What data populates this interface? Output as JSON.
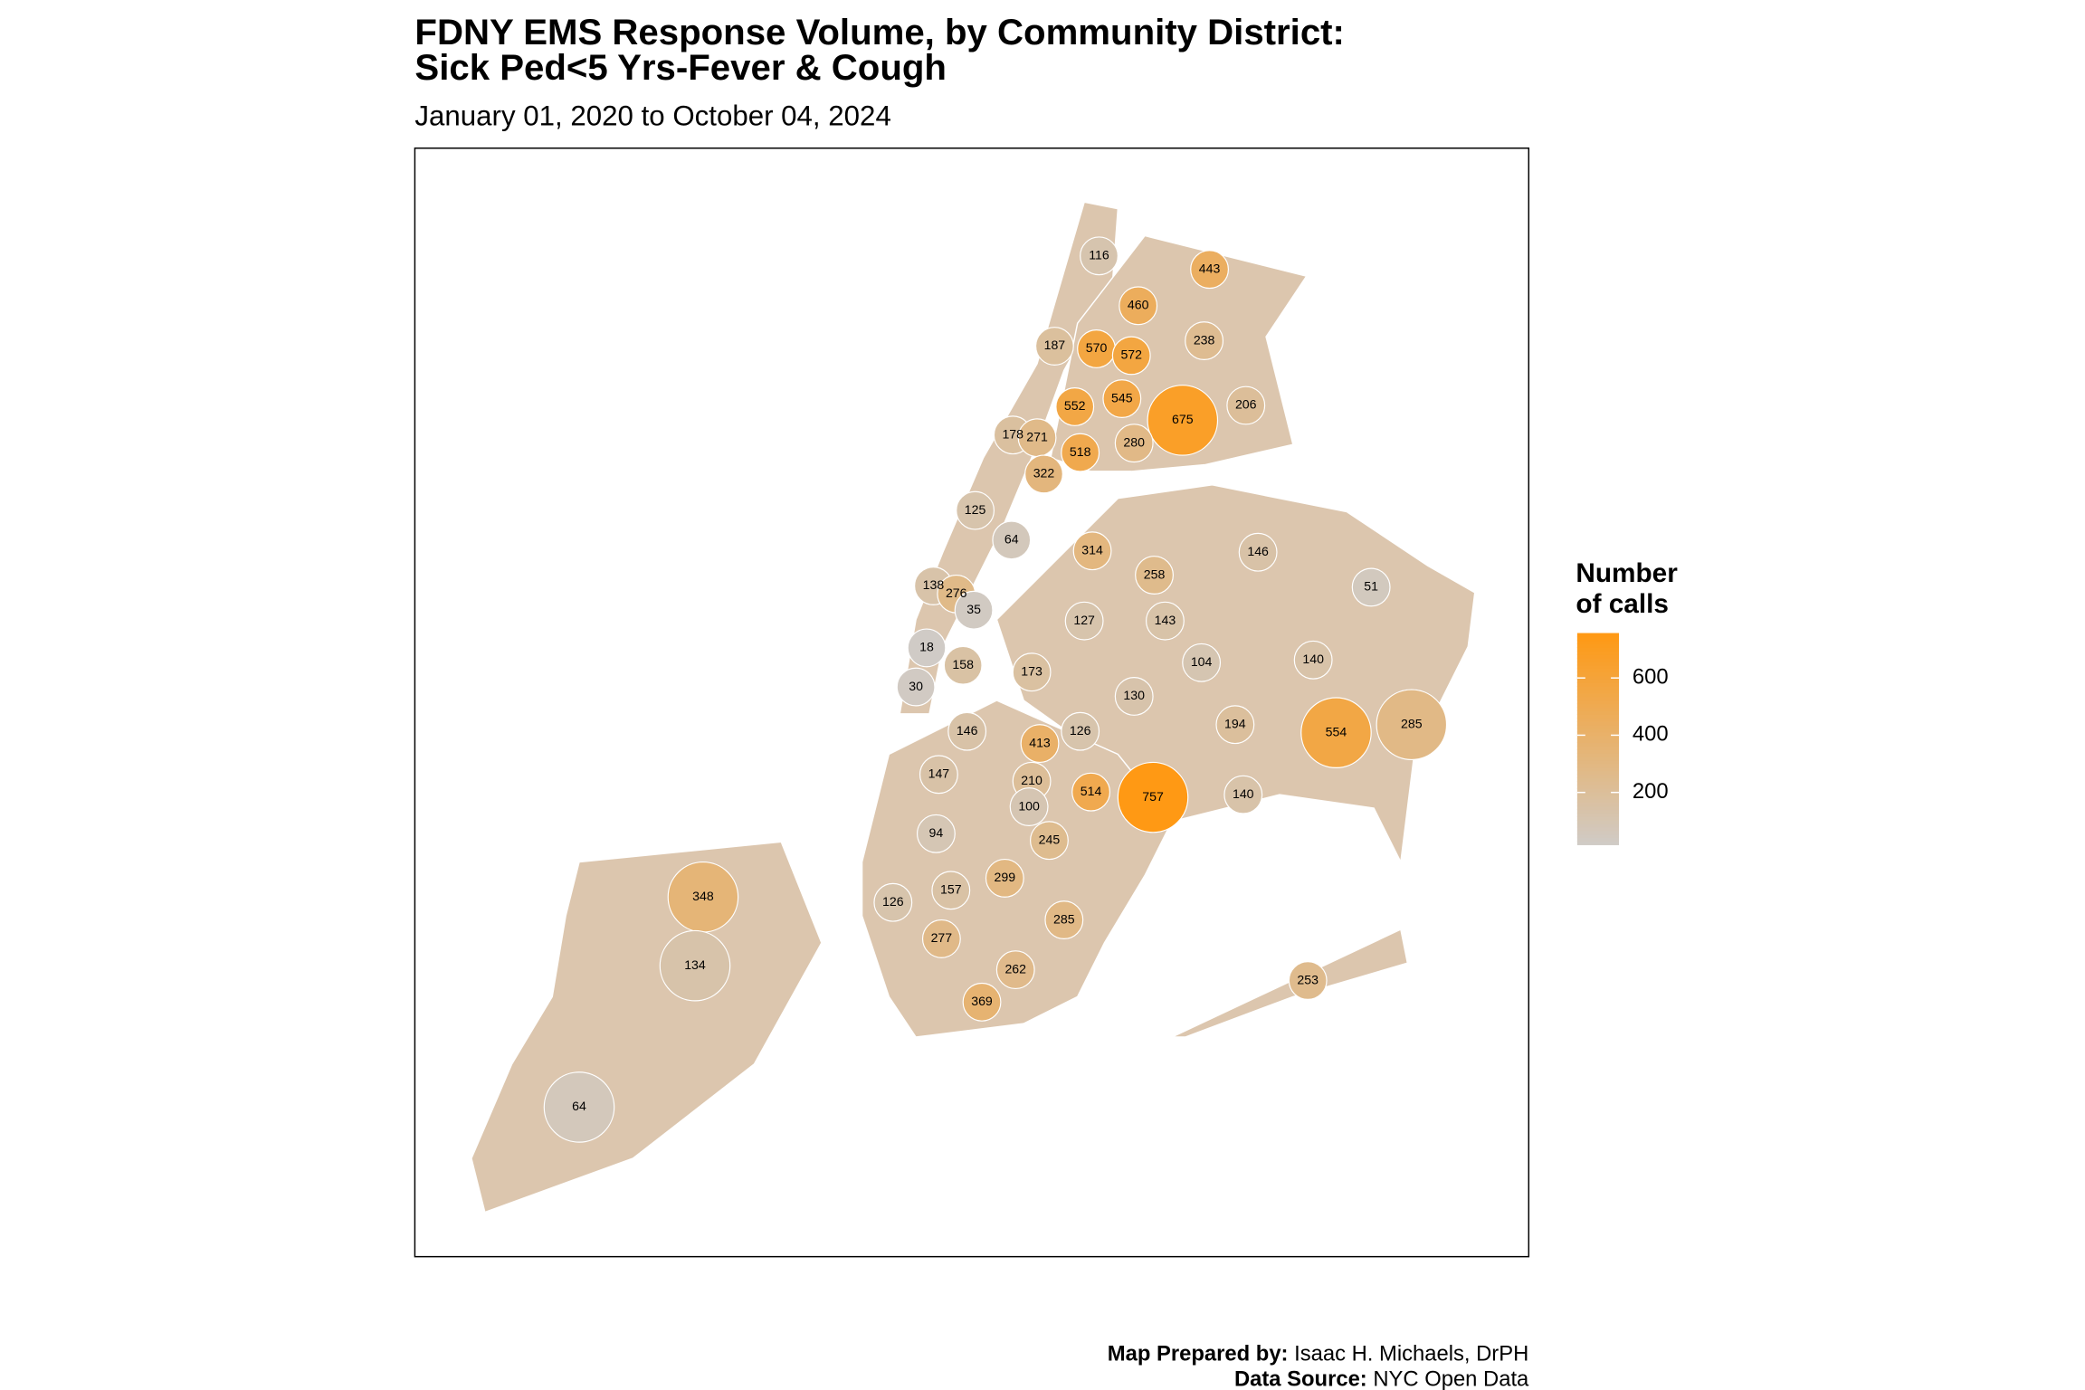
{
  "chart_data": {
    "type": "map",
    "title": [
      "FDNY EMS Response Volume, by Community District:",
      "Sick Ped<5 Yrs-Fever & Cough"
    ],
    "subtitle": "January 01, 2020 to October 04, 2024",
    "values": [
      116,
      443,
      460,
      238,
      187,
      570,
      572,
      552,
      545,
      675,
      206,
      178,
      271,
      280,
      518,
      322,
      125,
      64,
      314,
      146,
      258,
      51,
      138,
      276,
      35,
      127,
      143,
      18,
      158,
      104,
      140,
      173,
      30,
      130,
      194,
      554,
      285,
      146,
      413,
      126,
      147,
      210,
      514,
      757,
      140,
      100,
      94,
      245,
      299,
      157,
      126,
      348,
      285,
      277,
      134,
      262,
      253,
      369,
      64
    ],
    "legend_title": [
      "Number",
      "of calls"
    ],
    "clim": [
      18,
      757
    ],
    "ticks": [
      200,
      400,
      600
    ],
    "colors": {
      "low": "#d0cbc6",
      "high": "#ff9914"
    },
    "footer": [
      [
        "Map Prepared by:",
        " Isaac H. Michaels, DrPH"
      ],
      [
        "Data Source:",
        " NYC Open Data"
      ]
    ]
  }
}
